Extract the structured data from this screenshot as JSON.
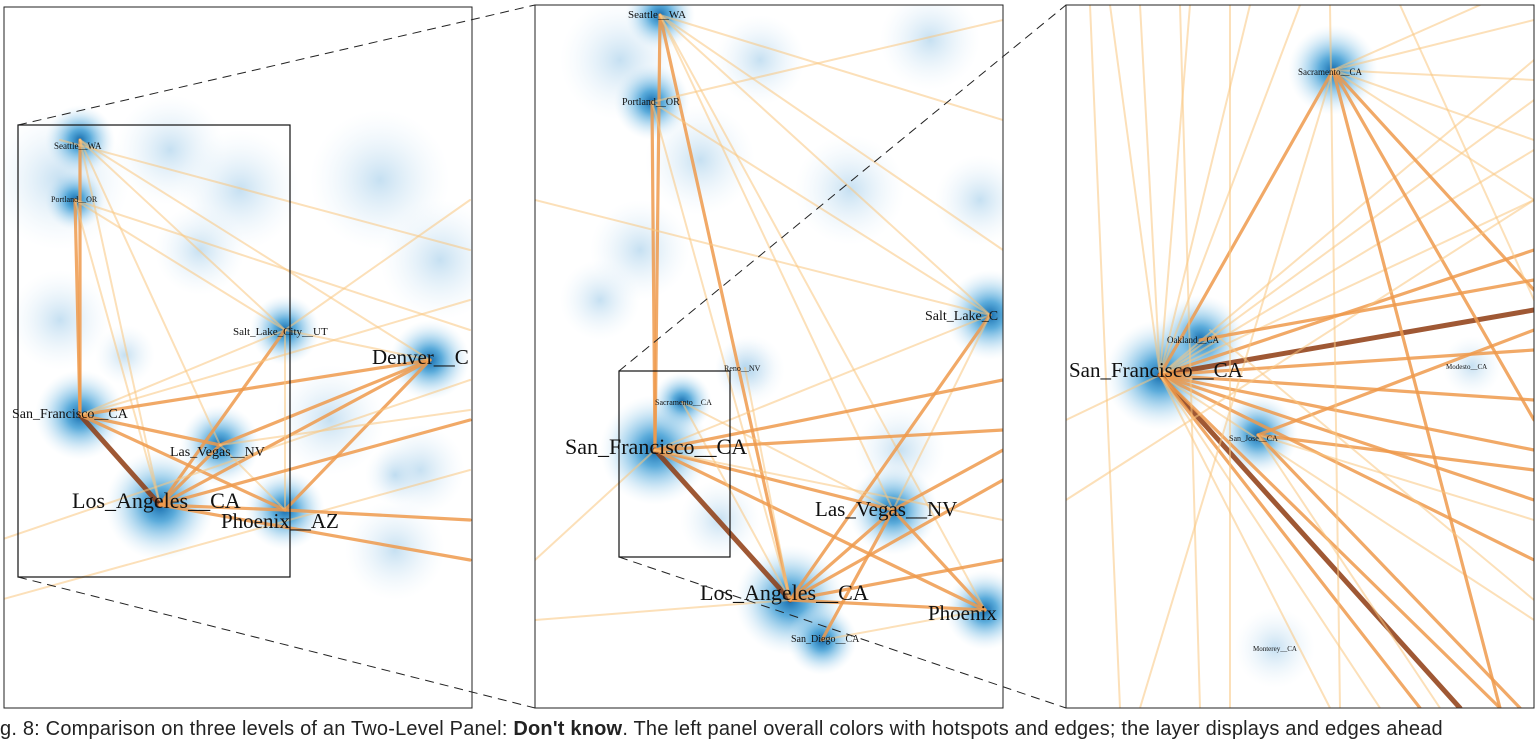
{
  "panels": [
    {
      "id": "overview",
      "labels": [
        {
          "key": "seattle",
          "text": "Seattle__WA"
        },
        {
          "key": "portland",
          "text": "Portland__OR"
        },
        {
          "key": "slc",
          "text": "Salt_Lake_City__UT"
        },
        {
          "key": "denver",
          "text": "Denver__C"
        },
        {
          "key": "sf",
          "text": "San_Francisco__CA"
        },
        {
          "key": "lv",
          "text": "Las_Vegas__NV"
        },
        {
          "key": "la",
          "text": "Los_Angeles__CA"
        },
        {
          "key": "phx",
          "text": "Phoenix__AZ"
        }
      ]
    },
    {
      "id": "zoom-1",
      "labels": [
        {
          "key": "seattle",
          "text": "Seattle__WA"
        },
        {
          "key": "portland",
          "text": "Portland__OR"
        },
        {
          "key": "slc",
          "text": "Salt_Lake_C"
        },
        {
          "key": "reno",
          "text": "Reno__NV"
        },
        {
          "key": "sac",
          "text": "Sacramento__CA"
        },
        {
          "key": "sf",
          "text": "San_Francisco__CA"
        },
        {
          "key": "lv",
          "text": "Las_Vegas__NV"
        },
        {
          "key": "la",
          "text": "Los_Angeles__CA"
        },
        {
          "key": "sd",
          "text": "San_Diego__CA"
        },
        {
          "key": "phx",
          "text": "Phoenix"
        }
      ]
    },
    {
      "id": "zoom-2",
      "labels": [
        {
          "key": "sac",
          "text": "Sacramento__CA"
        },
        {
          "key": "oak",
          "text": "Oakland__CA"
        },
        {
          "key": "sf",
          "text": "San_Francisco__CA"
        },
        {
          "key": "mod",
          "text": "Modesto__CA"
        },
        {
          "key": "sj",
          "text": "San_Jose__CA"
        },
        {
          "key": "mon",
          "text": "Monterey__CA"
        }
      ]
    }
  ],
  "caption": {
    "prefix": "g. 8: Comparison on three levels of an Two-Level Panel: ",
    "bold": "Don't know",
    "rest": ". The left panel overall colors with hotspots and edges; the layer displays and edges ahead"
  },
  "colors": {
    "edge_light": "#f9c77f",
    "edge_mid": "#ee9a4c",
    "edge_dark": "#8e3b10",
    "density": "#1a7fc1",
    "frame": "#222222"
  }
}
